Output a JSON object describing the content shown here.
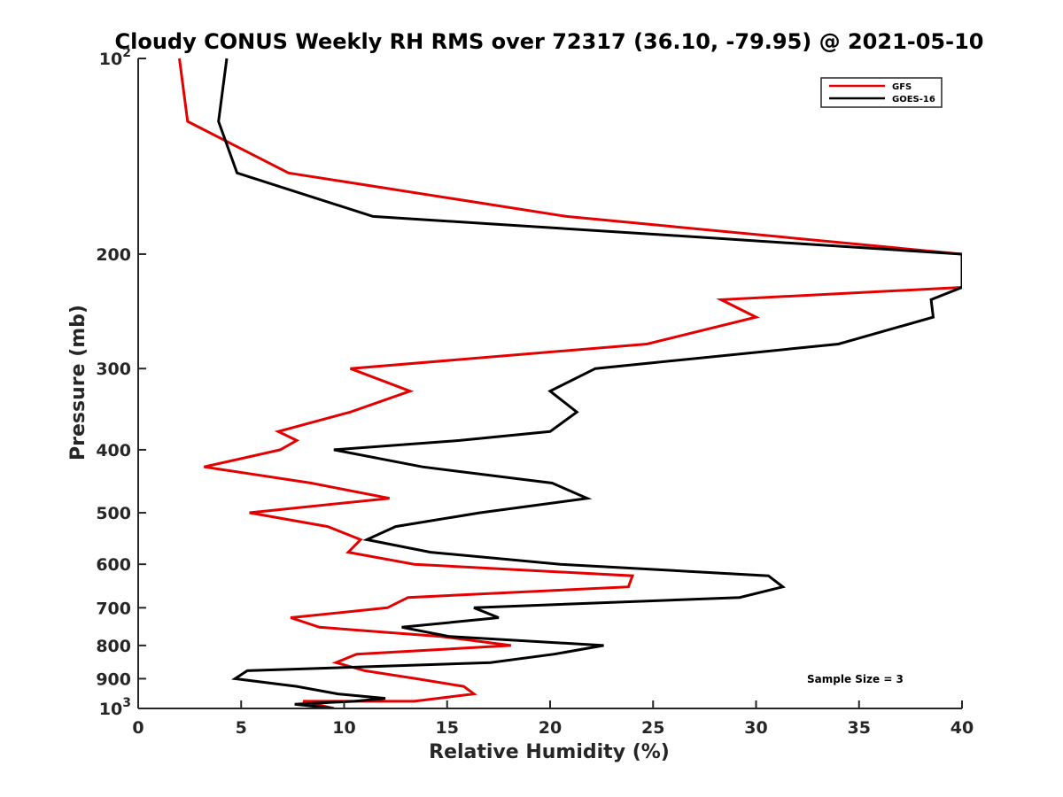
{
  "chart_data": {
    "type": "line",
    "title": "Cloudy CONUS Weekly RH RMS over 72317 (36.10, -79.95) @ 2021-05-10",
    "xlabel": "Relative Humidity (%)",
    "ylabel": "Pressure (mb)",
    "xlim": [
      0,
      40
    ],
    "ylim": [
      100,
      1000
    ],
    "y_scale": "log",
    "y_reversed": true,
    "grid": false,
    "legend_position": "top-right",
    "x_ticks": [
      0,
      5,
      10,
      15,
      20,
      25,
      30,
      35,
      40
    ],
    "y_ticks": [
      {
        "value": 100,
        "label_base": "10",
        "label_exp": "2"
      },
      {
        "value": 200,
        "label": "200"
      },
      {
        "value": 300,
        "label": "300"
      },
      {
        "value": 400,
        "label": "400"
      },
      {
        "value": 500,
        "label": "500"
      },
      {
        "value": 600,
        "label": "600"
      },
      {
        "value": 700,
        "label": "700"
      },
      {
        "value": 800,
        "label": "800"
      },
      {
        "value": 900,
        "label": "900"
      },
      {
        "value": 1000,
        "label_base": "10",
        "label_exp": "3"
      }
    ],
    "series": [
      {
        "name": "GFS",
        "color": "#e30000",
        "points": [
          [
            2.0,
            100
          ],
          [
            2.4,
            125
          ],
          [
            7.3,
            150
          ],
          [
            20.8,
            175
          ],
          [
            40.0,
            200
          ],
          [
            40.0,
            225
          ],
          [
            28.3,
            235
          ],
          [
            30.0,
            250
          ],
          [
            24.7,
            275
          ],
          [
            10.3,
            300
          ],
          [
            13.2,
            325
          ],
          [
            10.3,
            350
          ],
          [
            6.8,
            375
          ],
          [
            7.7,
            387
          ],
          [
            6.9,
            400
          ],
          [
            3.2,
            425
          ],
          [
            8.4,
            450
          ],
          [
            12.2,
            475
          ],
          [
            5.4,
            500
          ],
          [
            9.2,
            525
          ],
          [
            10.8,
            550
          ],
          [
            10.2,
            575
          ],
          [
            13.4,
            600
          ],
          [
            24.0,
            625
          ],
          [
            23.8,
            650
          ],
          [
            13.1,
            675
          ],
          [
            12.1,
            700
          ],
          [
            7.4,
            725
          ],
          [
            8.8,
            750
          ],
          [
            14.7,
            775
          ],
          [
            18.1,
            800
          ],
          [
            10.6,
            825
          ],
          [
            9.6,
            850
          ],
          [
            11.0,
            875
          ],
          [
            13.5,
            900
          ],
          [
            15.8,
            925
          ],
          [
            16.3,
            950
          ],
          [
            13.4,
            975
          ],
          [
            8.0,
            975
          ],
          [
            9.5,
            1000
          ]
        ]
      },
      {
        "name": "GOES-16",
        "color": "#000000",
        "points": [
          [
            4.3,
            100
          ],
          [
            3.9,
            125
          ],
          [
            4.8,
            150
          ],
          [
            11.4,
            175
          ],
          [
            25.7,
            187
          ],
          [
            40.0,
            200
          ],
          [
            40.0,
            225
          ],
          [
            38.5,
            235
          ],
          [
            38.6,
            250
          ],
          [
            34.0,
            275
          ],
          [
            22.2,
            300
          ],
          [
            20.0,
            325
          ],
          [
            21.3,
            350
          ],
          [
            20.0,
            375
          ],
          [
            15.6,
            387
          ],
          [
            9.5,
            400
          ],
          [
            13.8,
            425
          ],
          [
            20.1,
            450
          ],
          [
            21.8,
            475
          ],
          [
            16.6,
            500
          ],
          [
            12.5,
            525
          ],
          [
            11.1,
            550
          ],
          [
            14.2,
            575
          ],
          [
            20.5,
            600
          ],
          [
            30.6,
            625
          ],
          [
            31.3,
            650
          ],
          [
            29.2,
            675
          ],
          [
            16.3,
            700
          ],
          [
            17.5,
            725
          ],
          [
            12.8,
            750
          ],
          [
            15.1,
            775
          ],
          [
            22.6,
            800
          ],
          [
            20.2,
            825
          ],
          [
            17.1,
            850
          ],
          [
            5.3,
            875
          ],
          [
            4.7,
            900
          ],
          [
            7.7,
            925
          ],
          [
            9.7,
            950
          ],
          [
            12.0,
            965
          ],
          [
            10.5,
            975
          ],
          [
            7.6,
            985
          ],
          [
            9.5,
            1000
          ]
        ]
      }
    ],
    "annotation": "Sample Size = 3"
  }
}
